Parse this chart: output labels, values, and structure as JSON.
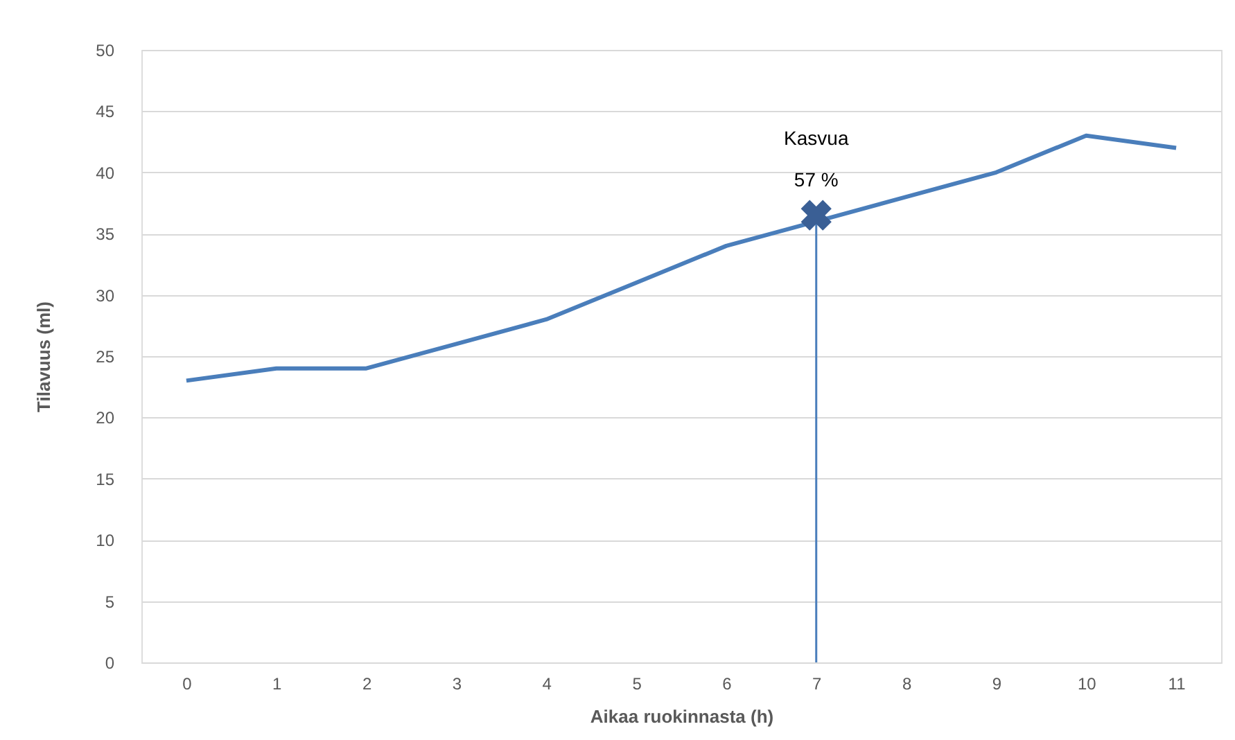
{
  "chart_data": {
    "type": "line",
    "xlabel": "Aikaa ruokinnasta (h)",
    "ylabel": "Tilavuus (ml)",
    "x": [
      0,
      1,
      2,
      3,
      4,
      5,
      6,
      7,
      8,
      9,
      10,
      11
    ],
    "series": [
      {
        "color": "#4a7ebb",
        "marker": "none",
        "line_style": "solid",
        "values": [
          23,
          24,
          24,
          26,
          28,
          31,
          34,
          36,
          38,
          40,
          43,
          42
        ]
      },
      {
        "type": "scatter",
        "color": "#3a5f95",
        "marker": "cross",
        "x": [
          7
        ],
        "values": [
          36.5
        ]
      }
    ],
    "xlim": [
      -0.5,
      11.5
    ],
    "xticks": [
      0,
      1,
      2,
      3,
      4,
      5,
      6,
      7,
      8,
      9,
      10,
      11
    ],
    "ylim": [
      0,
      50
    ],
    "yticks": [
      0,
      5,
      10,
      15,
      20,
      25,
      30,
      35,
      40,
      45,
      50
    ],
    "grid": "y",
    "ref_lines": [
      {
        "axis": "x",
        "value": 7,
        "color": "#4a7ebb"
      }
    ],
    "annotations": [
      {
        "text": "Kasvua\n57 %",
        "x": 7,
        "y": 36.5
      }
    ]
  }
}
